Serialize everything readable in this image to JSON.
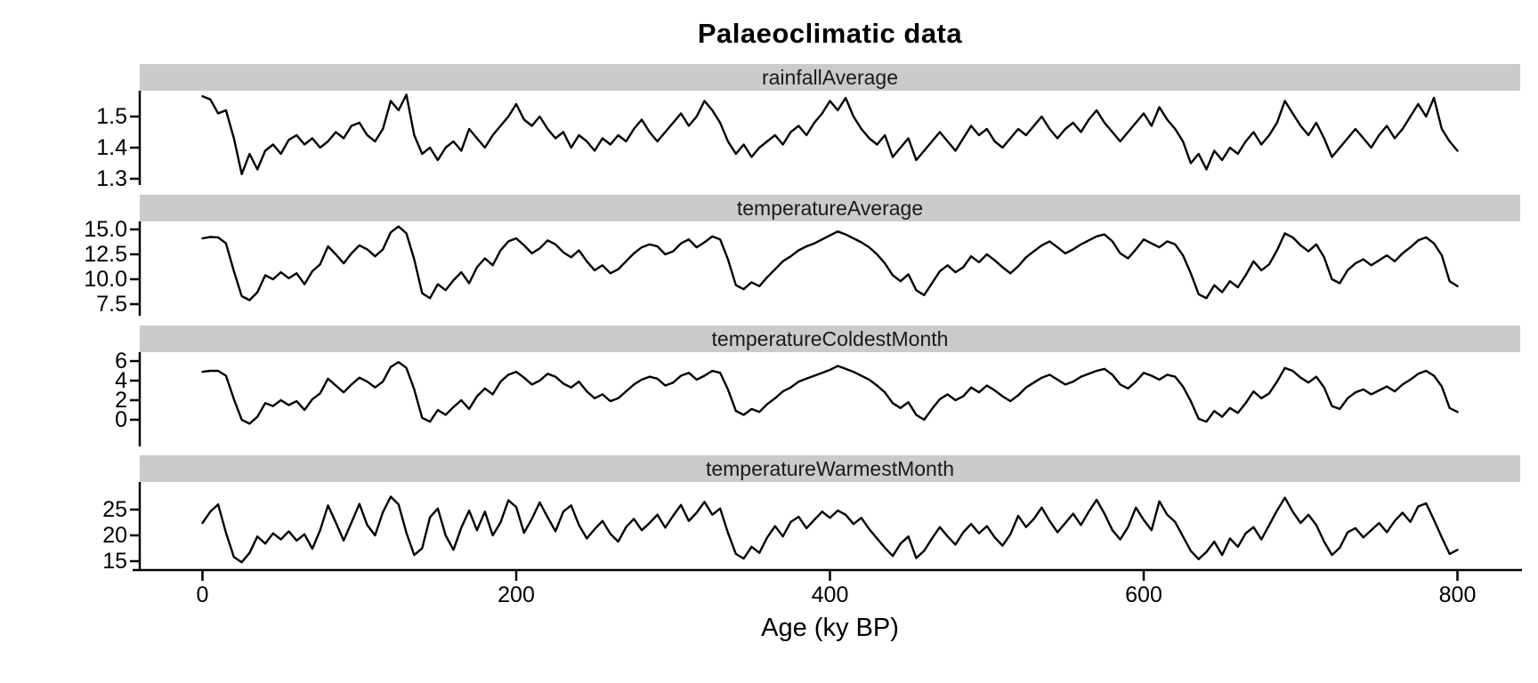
{
  "chart_data": {
    "type": "line",
    "title": "Palaeoclimatic data",
    "xlabel": "Age (ky BP)",
    "x_start": 0,
    "x_end": 800,
    "x_step": 5,
    "x_domain": [
      -40,
      840
    ],
    "x_ticks": [
      0,
      200,
      400,
      600,
      800
    ],
    "x_tick_labels": [
      "0",
      "200",
      "400",
      "600",
      "800"
    ],
    "grid": false,
    "legend_position": "none",
    "layout": "4 stacked facet panels sharing the x axis, gray strip header above each panel",
    "line_color": "#000000",
    "strip_color": "#cbcbcb",
    "series": [
      {
        "name": "rainfallAverage",
        "ylim": [
          1.28,
          1.583
        ],
        "y_ticks": [
          1.3,
          1.4,
          1.5
        ],
        "y_tick_labels": [
          "1.3",
          "1.4",
          "1.5"
        ],
        "values": [
          1.565,
          1.555,
          1.51,
          1.52,
          1.43,
          1.315,
          1.38,
          1.33,
          1.39,
          1.41,
          1.38,
          1.425,
          1.44,
          1.41,
          1.43,
          1.4,
          1.42,
          1.45,
          1.43,
          1.47,
          1.48,
          1.44,
          1.42,
          1.46,
          1.55,
          1.52,
          1.57,
          1.44,
          1.38,
          1.4,
          1.36,
          1.4,
          1.42,
          1.39,
          1.46,
          1.43,
          1.4,
          1.44,
          1.47,
          1.5,
          1.54,
          1.49,
          1.47,
          1.5,
          1.46,
          1.43,
          1.45,
          1.4,
          1.44,
          1.42,
          1.39,
          1.43,
          1.41,
          1.44,
          1.42,
          1.46,
          1.49,
          1.45,
          1.42,
          1.45,
          1.48,
          1.51,
          1.47,
          1.5,
          1.55,
          1.52,
          1.48,
          1.42,
          1.38,
          1.41,
          1.37,
          1.4,
          1.42,
          1.44,
          1.41,
          1.45,
          1.47,
          1.44,
          1.48,
          1.51,
          1.55,
          1.52,
          1.56,
          1.5,
          1.46,
          1.43,
          1.41,
          1.44,
          1.37,
          1.4,
          1.43,
          1.36,
          1.39,
          1.42,
          1.45,
          1.42,
          1.39,
          1.43,
          1.47,
          1.44,
          1.46,
          1.42,
          1.4,
          1.43,
          1.46,
          1.44,
          1.47,
          1.5,
          1.46,
          1.43,
          1.46,
          1.48,
          1.45,
          1.49,
          1.52,
          1.48,
          1.45,
          1.42,
          1.45,
          1.48,
          1.51,
          1.47,
          1.53,
          1.49,
          1.46,
          1.42,
          1.35,
          1.38,
          1.33,
          1.39,
          1.36,
          1.4,
          1.38,
          1.42,
          1.45,
          1.41,
          1.44,
          1.48,
          1.55,
          1.51,
          1.47,
          1.44,
          1.48,
          1.43,
          1.37,
          1.4,
          1.43,
          1.46,
          1.43,
          1.4,
          1.44,
          1.47,
          1.43,
          1.46,
          1.5,
          1.54,
          1.5,
          1.56,
          1.46,
          1.42,
          1.39
        ]
      },
      {
        "name": "temperatureAverage",
        "ylim": [
          6.34,
          15.8
        ],
        "y_ticks": [
          7.5,
          10.0,
          12.5,
          15.0
        ],
        "y_tick_labels": [
          "7.5",
          "10.0",
          "12.5",
          "15.0"
        ],
        "values": [
          14.1,
          14.25,
          14.2,
          13.6,
          10.8,
          8.3,
          7.9,
          8.7,
          10.4,
          10.0,
          10.7,
          10.1,
          10.6,
          9.5,
          10.8,
          11.5,
          13.3,
          12.5,
          11.6,
          12.6,
          13.4,
          13.0,
          12.3,
          13.0,
          14.7,
          15.3,
          14.6,
          12.0,
          8.6,
          8.1,
          9.5,
          8.9,
          9.9,
          10.7,
          9.6,
          11.2,
          12.1,
          11.4,
          12.9,
          13.8,
          14.1,
          13.4,
          12.6,
          13.1,
          13.9,
          13.5,
          12.7,
          12.2,
          12.9,
          11.8,
          10.9,
          11.4,
          10.6,
          11.0,
          11.8,
          12.6,
          13.2,
          13.5,
          13.3,
          12.5,
          12.8,
          13.6,
          14.0,
          13.2,
          13.7,
          14.3,
          14.0,
          12.0,
          9.4,
          9.0,
          9.7,
          9.3,
          10.2,
          11.0,
          11.8,
          12.3,
          12.9,
          13.3,
          13.6,
          14.0,
          14.4,
          14.8,
          14.5,
          14.1,
          13.7,
          13.2,
          12.5,
          11.6,
          10.4,
          9.8,
          10.5,
          8.9,
          8.4,
          9.6,
          10.8,
          11.4,
          10.7,
          11.2,
          12.3,
          11.7,
          12.5,
          11.9,
          11.2,
          10.6,
          11.3,
          12.2,
          12.8,
          13.4,
          13.8,
          13.2,
          12.6,
          13.0,
          13.5,
          13.9,
          14.3,
          14.5,
          13.8,
          12.6,
          12.1,
          13.0,
          14.0,
          13.6,
          13.2,
          13.8,
          13.5,
          12.4,
          10.6,
          8.5,
          8.1,
          9.4,
          8.7,
          9.8,
          9.2,
          10.4,
          11.8,
          10.9,
          11.5,
          12.9,
          14.6,
          14.2,
          13.4,
          12.8,
          13.5,
          12.2,
          10.0,
          9.6,
          10.9,
          11.6,
          12.0,
          11.4,
          11.9,
          12.4,
          11.8,
          12.6,
          13.2,
          13.9,
          14.2,
          13.6,
          12.4,
          9.8,
          9.3
        ]
      },
      {
        "name": "temperatureColdestMonth",
        "ylim": [
          -2.73,
          6.91
        ],
        "y_ticks": [
          0,
          2,
          4,
          6
        ],
        "y_tick_labels": [
          "0",
          "2",
          "4",
          "6"
        ],
        "values": [
          4.9,
          5.0,
          5.0,
          4.5,
          2.1,
          0.0,
          -0.4,
          0.3,
          1.7,
          1.4,
          2.0,
          1.5,
          1.9,
          1.0,
          2.1,
          2.7,
          4.2,
          3.5,
          2.8,
          3.6,
          4.3,
          3.9,
          3.3,
          3.9,
          5.4,
          5.9,
          5.3,
          3.1,
          0.2,
          -0.2,
          1.0,
          0.5,
          1.3,
          2.0,
          1.1,
          2.4,
          3.2,
          2.6,
          3.9,
          4.6,
          4.9,
          4.3,
          3.6,
          4.0,
          4.7,
          4.4,
          3.7,
          3.3,
          3.9,
          2.9,
          2.2,
          2.6,
          1.9,
          2.2,
          2.9,
          3.6,
          4.1,
          4.4,
          4.2,
          3.5,
          3.8,
          4.5,
          4.8,
          4.1,
          4.5,
          5.0,
          4.8,
          3.1,
          0.9,
          0.5,
          1.1,
          0.8,
          1.6,
          2.2,
          2.9,
          3.3,
          3.9,
          4.2,
          4.5,
          4.8,
          5.1,
          5.5,
          5.2,
          4.9,
          4.5,
          4.1,
          3.5,
          2.8,
          1.7,
          1.2,
          1.8,
          0.5,
          0.0,
          1.1,
          2.1,
          2.6,
          2.0,
          2.4,
          3.3,
          2.8,
          3.5,
          3.0,
          2.4,
          1.9,
          2.5,
          3.3,
          3.8,
          4.3,
          4.6,
          4.1,
          3.6,
          3.9,
          4.4,
          4.7,
          5.0,
          5.2,
          4.6,
          3.6,
          3.2,
          3.9,
          4.8,
          4.5,
          4.1,
          4.6,
          4.4,
          3.4,
          1.9,
          0.1,
          -0.2,
          0.9,
          0.3,
          1.2,
          0.7,
          1.7,
          2.9,
          2.2,
          2.7,
          3.9,
          5.3,
          5.0,
          4.3,
          3.8,
          4.4,
          3.3,
          1.4,
          1.1,
          2.2,
          2.8,
          3.1,
          2.6,
          3.0,
          3.4,
          2.9,
          3.6,
          4.1,
          4.7,
          5.0,
          4.5,
          3.4,
          1.2,
          0.8
        ]
      },
      {
        "name": "temperatureWarmestMonth",
        "ylim": [
          13.28,
          30.34
        ],
        "y_ticks": [
          15,
          20,
          25
        ],
        "y_tick_labels": [
          "15",
          "20",
          "25"
        ],
        "values": [
          22.4,
          24.6,
          26.0,
          20.5,
          15.8,
          14.8,
          16.6,
          19.8,
          18.4,
          20.4,
          19.2,
          20.8,
          19.0,
          20.2,
          17.4,
          21.0,
          25.8,
          22.5,
          19.0,
          22.5,
          26.1,
          22.0,
          20.0,
          24.5,
          27.5,
          26.0,
          20.5,
          16.2,
          17.5,
          23.5,
          25.2,
          20.0,
          17.2,
          21.5,
          24.8,
          21.0,
          24.6,
          20.0,
          22.5,
          26.8,
          25.5,
          20.5,
          23.2,
          26.4,
          23.5,
          20.8,
          24.6,
          25.8,
          22.0,
          19.4,
          21.2,
          22.8,
          20.3,
          18.8,
          21.6,
          23.2,
          21.0,
          22.4,
          24.0,
          21.5,
          23.8,
          25.9,
          22.8,
          24.4,
          26.5,
          24.0,
          25.2,
          20.5,
          16.4,
          15.5,
          17.8,
          16.6,
          19.6,
          21.8,
          19.8,
          22.6,
          23.6,
          21.4,
          23.0,
          24.6,
          23.4,
          24.8,
          24.0,
          22.2,
          23.4,
          21.2,
          19.4,
          17.6,
          16.0,
          18.4,
          19.8,
          15.6,
          17.0,
          19.4,
          21.6,
          19.8,
          18.2,
          20.6,
          22.2,
          20.4,
          21.8,
          19.6,
          18.0,
          20.2,
          23.8,
          21.6,
          23.2,
          25.4,
          22.8,
          20.6,
          22.4,
          24.2,
          22.0,
          24.6,
          26.9,
          24.2,
          21.0,
          19.2,
          21.6,
          25.4,
          23.0,
          21.0,
          26.6,
          24.0,
          22.6,
          19.8,
          17.0,
          15.4,
          16.8,
          18.8,
          16.2,
          19.4,
          17.8,
          20.4,
          21.6,
          19.2,
          22.0,
          24.8,
          27.3,
          24.6,
          22.4,
          24.0,
          22.0,
          18.8,
          16.2,
          17.6,
          20.6,
          21.4,
          19.6,
          21.0,
          22.4,
          20.6,
          22.8,
          24.4,
          22.6,
          25.6,
          26.2,
          23.0,
          19.6,
          16.4,
          17.2
        ]
      }
    ]
  }
}
